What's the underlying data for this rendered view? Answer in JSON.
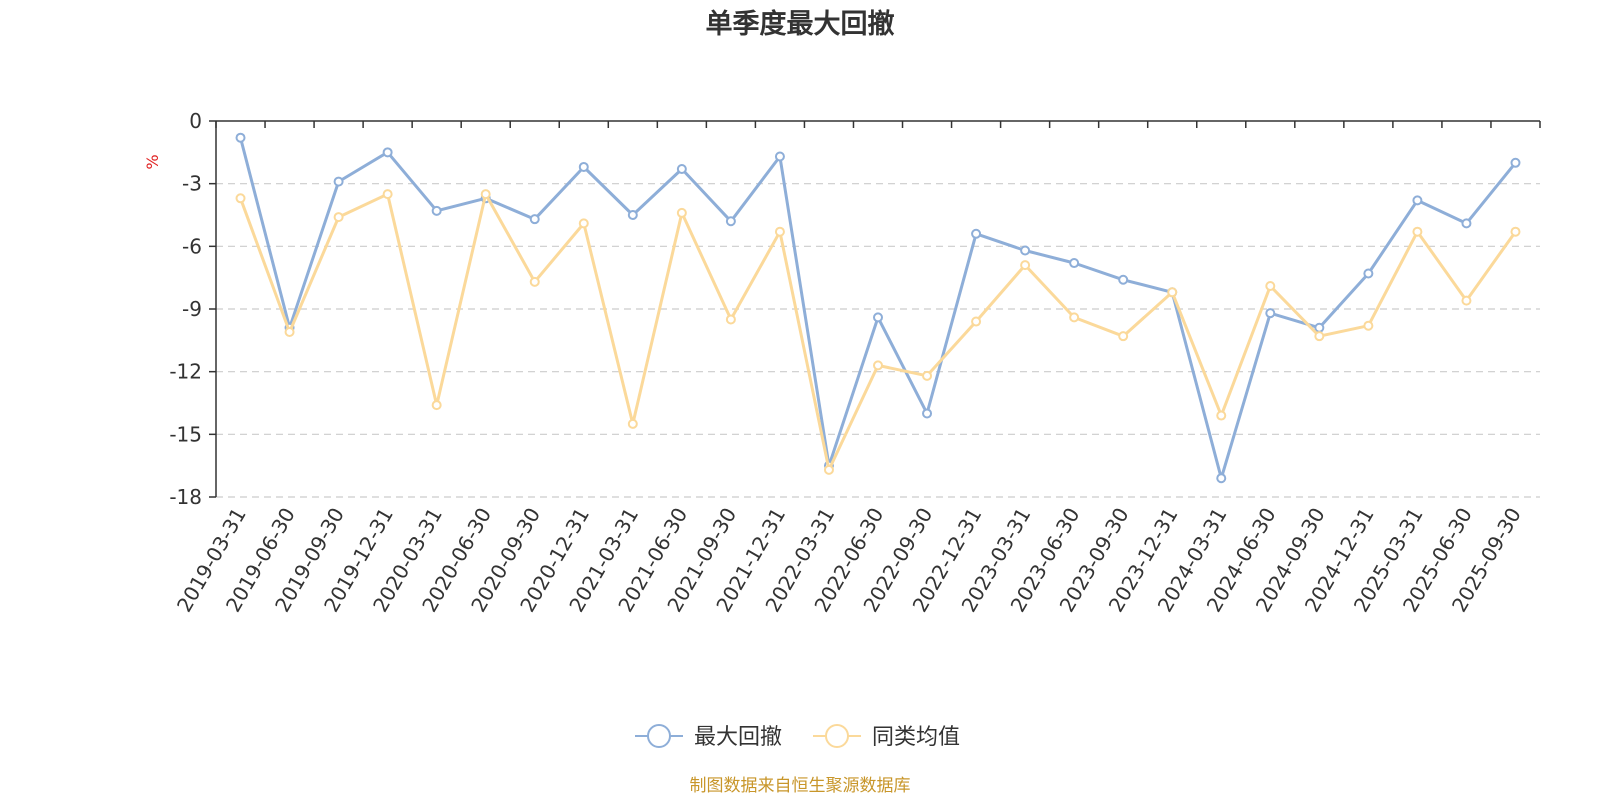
{
  "colors": {
    "series1": "#8eaed8",
    "series2": "#fbd99a",
    "grid": "#cccccc",
    "axis": "#333333",
    "source": "#c8962a",
    "unit": "#e02020"
  },
  "footer": {
    "source": "制图数据来自恒生聚源数据库"
  },
  "chart_data": {
    "type": "line",
    "title": "单季度最大回撤",
    "ylabel": "%",
    "ylim": [
      -18,
      0
    ],
    "yticks": [
      0,
      -3,
      -6,
      -9,
      -12,
      -15,
      -18
    ],
    "grid": "horizontal-dashed",
    "legend_position": "bottom-center",
    "categories": [
      "2019-03-31",
      "2019-06-30",
      "2019-09-30",
      "2019-12-31",
      "2020-03-31",
      "2020-06-30",
      "2020-09-30",
      "2020-12-31",
      "2021-03-31",
      "2021-06-30",
      "2021-09-30",
      "2021-12-31",
      "2022-03-31",
      "2022-06-30",
      "2022-09-30",
      "2022-12-31",
      "2023-03-31",
      "2023-06-30",
      "2023-09-30",
      "2023-12-31",
      "2024-03-31",
      "2024-06-30",
      "2024-09-30",
      "2024-12-31",
      "2025-03-31",
      "2025-06-30",
      "2025-09-30"
    ],
    "series": [
      {
        "name": "最大回撤",
        "values": [
          -0.8,
          -9.9,
          -2.9,
          -1.5,
          -4.3,
          -3.7,
          -4.7,
          -2.2,
          -4.5,
          -2.3,
          -4.8,
          -1.7,
          -16.5,
          -9.4,
          -14.0,
          -5.4,
          -6.2,
          -6.8,
          -7.6,
          -8.2,
          -17.1,
          -9.2,
          -9.9,
          -7.3,
          -3.8,
          -4.9,
          -2.0
        ]
      },
      {
        "name": "同类均值",
        "values": [
          -3.7,
          -10.1,
          -4.6,
          -3.5,
          -13.6,
          -3.5,
          -7.7,
          -4.9,
          -14.5,
          -4.4,
          -9.5,
          -5.3,
          -16.7,
          -11.7,
          -12.2,
          -9.6,
          -6.9,
          -9.4,
          -10.3,
          -8.2,
          -14.1,
          -7.9,
          -10.3,
          -9.8,
          -5.3,
          -8.6,
          -5.3
        ]
      }
    ]
  }
}
